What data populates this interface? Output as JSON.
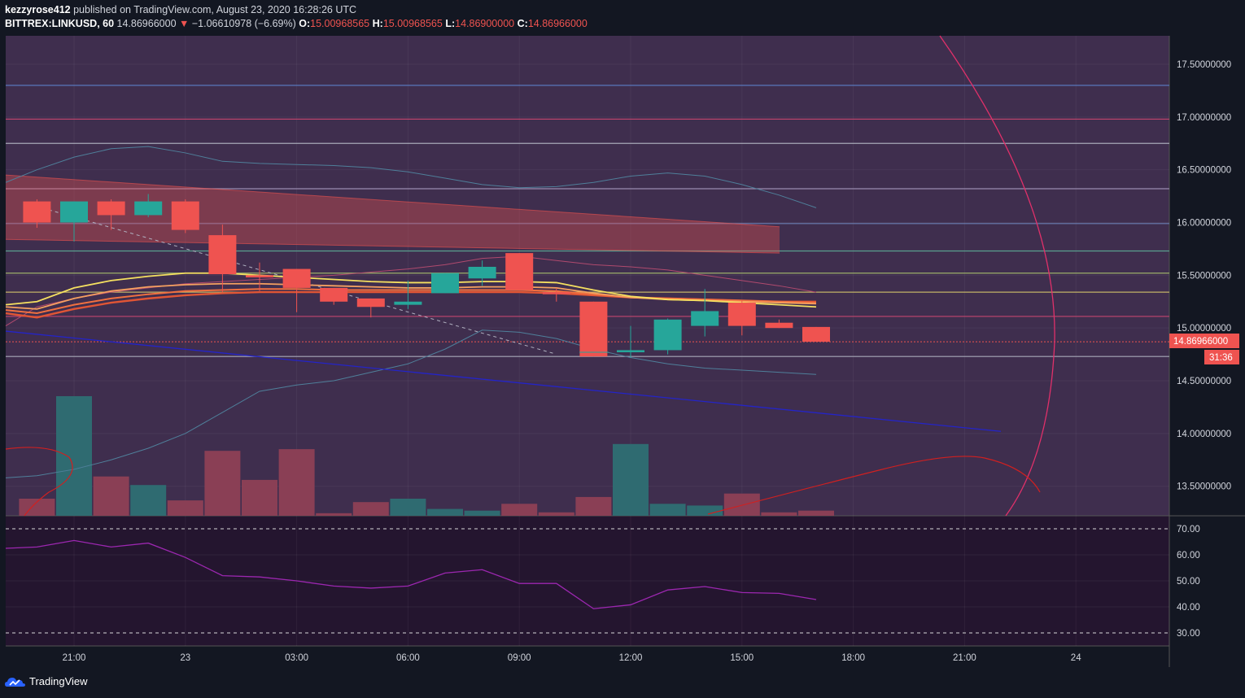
{
  "header": {
    "user": "kezzyrose412",
    "published": "published on TradingView.com, August 23, 2020 16:28:26 UTC",
    "symbol": "BITTREX:LINKUSD, 60",
    "last": "14.86966000",
    "change": "−1.06610978 (−6.69%)",
    "o_label": "O:",
    "o": "15.00968565",
    "h_label": "H:",
    "h": "15.00968565",
    "l_label": "L:",
    "l": "14.86900000",
    "c_label": "C:",
    "c": "14.86966000"
  },
  "footer": {
    "brand": "TradingView"
  },
  "price_tag": {
    "value": "14.86966000",
    "countdown": "31:36"
  },
  "colors": {
    "up": "#26a69a",
    "down": "#ef5350",
    "panel": "#3f2e4e",
    "rsi_panel": "#24152f",
    "background": "#131722",
    "rsi_line": "#9c27b0",
    "trend_line": "#2424c8"
  },
  "chart_data": {
    "type": "candlestick",
    "x_tick_labels": [
      "21:00",
      "23",
      "03:00",
      "06:00",
      "09:00",
      "12:00",
      "15:00",
      "18:00",
      "21:00",
      "24"
    ],
    "y_tick_labels": [
      "17.50000000",
      "17.00000000",
      "16.50000000",
      "16.00000000",
      "15.50000000",
      "15.00000000",
      "14.50000000",
      "14.00000000",
      "13.50000000"
    ],
    "ylim": [
      13.22,
      17.77
    ],
    "candles": [
      {
        "o": 16.2,
        "h": 16.22,
        "l": 15.95,
        "c": 16.0
      },
      {
        "o": 16.0,
        "h": 16.2,
        "l": 15.82,
        "c": 16.2
      },
      {
        "o": 16.2,
        "h": 16.22,
        "l": 15.93,
        "c": 16.07
      },
      {
        "o": 16.07,
        "h": 16.27,
        "l": 16.05,
        "c": 16.2
      },
      {
        "o": 16.2,
        "h": 16.22,
        "l": 15.9,
        "c": 15.93
      },
      {
        "o": 15.88,
        "h": 15.98,
        "l": 15.34,
        "c": 15.51
      },
      {
        "o": 15.5,
        "h": 15.62,
        "l": 15.35,
        "c": 15.48
      },
      {
        "o": 15.56,
        "h": 15.56,
        "l": 15.15,
        "c": 15.38
      },
      {
        "o": 15.38,
        "h": 15.38,
        "l": 15.22,
        "c": 15.25
      },
      {
        "o": 15.28,
        "h": 15.28,
        "l": 15.1,
        "c": 15.2
      },
      {
        "o": 15.22,
        "h": 15.45,
        "l": 15.18,
        "c": 15.25
      },
      {
        "o": 15.33,
        "h": 15.52,
        "l": 15.33,
        "c": 15.52
      },
      {
        "o": 15.47,
        "h": 15.64,
        "l": 15.4,
        "c": 15.58
      },
      {
        "o": 15.71,
        "h": 15.71,
        "l": 15.36,
        "c": 15.36
      },
      {
        "o": 15.34,
        "h": 15.38,
        "l": 15.25,
        "c": 15.32
      },
      {
        "o": 15.25,
        "h": 15.25,
        "l": 14.73,
        "c": 14.73
      },
      {
        "o": 14.77,
        "h": 15.02,
        "l": 14.72,
        "c": 14.79
      },
      {
        "o": 14.79,
        "h": 15.09,
        "l": 14.75,
        "c": 15.08
      },
      {
        "o": 15.02,
        "h": 15.37,
        "l": 14.92,
        "c": 15.16
      },
      {
        "o": 15.24,
        "h": 15.26,
        "l": 14.93,
        "c": 15.02
      },
      {
        "o": 15.05,
        "h": 15.08,
        "l": 15.0,
        "c": 15.0
      },
      {
        "o": 15.01,
        "h": 15.01,
        "l": 14.87,
        "c": 14.87
      }
    ],
    "volume": [
      1.0,
      7.0,
      2.3,
      1.8,
      0.9,
      3.8,
      2.1,
      3.9,
      0.15,
      0.8,
      1.0,
      0.4,
      0.3,
      0.7,
      0.2,
      1.1,
      4.2,
      0.7,
      0.6,
      1.3,
      0.2,
      0.3
    ],
    "horizontal_levels": [
      {
        "y": 17.3,
        "color": "#5b7fc7"
      },
      {
        "y": 16.98,
        "color": "#c2456e"
      },
      {
        "y": 16.75,
        "color": "#a8a8b8"
      },
      {
        "y": 16.32,
        "color": "#9a8bb0"
      },
      {
        "y": 15.99,
        "color": "#6c7fb3"
      },
      {
        "y": 15.73,
        "color": "#5aa08f"
      },
      {
        "y": 15.52,
        "color": "#9cb06a"
      },
      {
        "y": 15.34,
        "color": "#c2b266"
      },
      {
        "y": 15.11,
        "color": "#c2456e"
      },
      {
        "y": 14.73,
        "color": "#a8a8b8"
      }
    ],
    "rsi": {
      "levels": [
        "70.00",
        "60.00",
        "50.00",
        "40.00",
        "30.00"
      ],
      "range": [
        25,
        75
      ],
      "values": [
        63,
        65.5,
        63,
        64.5,
        59,
        52,
        51.5,
        50,
        48,
        47.2,
        48,
        53,
        54.3,
        49,
        49,
        39.3,
        40.8,
        46.5,
        47.8,
        45.5,
        45.2,
        42.8
      ]
    }
  }
}
